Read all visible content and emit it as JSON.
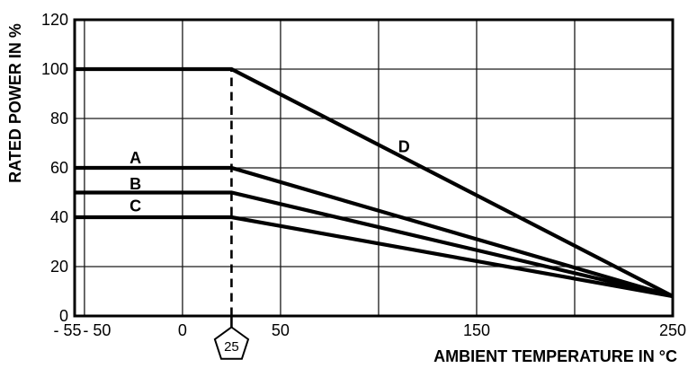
{
  "chart_data": {
    "type": "line",
    "title": "",
    "xlabel": "AMBIENT TEMPERATURE IN °C",
    "ylabel": "RATED POWER IN %",
    "xlim": [
      -55,
      250
    ],
    "ylim": [
      0,
      120
    ],
    "grid": true,
    "legend_position": "none",
    "x_gridlines": [
      -50,
      0,
      50,
      100,
      150,
      200
    ],
    "y_gridlines": [
      20,
      40,
      60,
      80,
      100
    ],
    "x_ticks": [
      {
        "value": -55,
        "label": "- 55",
        "dx": -8
      },
      {
        "value": -50,
        "label": "- 50",
        "dx": 14
      },
      {
        "value": 0,
        "label": "0",
        "dx": 0
      },
      {
        "value": 50,
        "label": "50",
        "dx": 0
      },
      {
        "value": 150,
        "label": "150",
        "dx": 0
      },
      {
        "value": 250,
        "label": "250",
        "dx": 0
      }
    ],
    "y_ticks": [
      {
        "value": 0,
        "label": "0"
      },
      {
        "value": 20,
        "label": "20"
      },
      {
        "value": 40,
        "label": "40"
      },
      {
        "value": 60,
        "label": "60"
      },
      {
        "value": 80,
        "label": "80"
      },
      {
        "value": 100,
        "label": "100"
      },
      {
        "value": 120,
        "label": "120"
      }
    ],
    "reference_line": {
      "x": 25,
      "y_from": 0,
      "y_to": 100,
      "style": "dashed"
    },
    "x_marker": {
      "value": 25,
      "label": "25",
      "shape": "pentagon"
    },
    "series": [
      {
        "name": "A",
        "points": [
          [
            -55,
            60
          ],
          [
            25,
            60
          ],
          [
            250,
            8
          ]
        ],
        "label_at": [
          -24,
          64
        ]
      },
      {
        "name": "B",
        "points": [
          [
            -55,
            50
          ],
          [
            25,
            50
          ],
          [
            250,
            8
          ]
        ],
        "label_at": [
          -24,
          53.5
        ]
      },
      {
        "name": "C",
        "points": [
          [
            -55,
            40
          ],
          [
            25,
            40
          ],
          [
            250,
            8
          ]
        ],
        "label_at": [
          -24,
          44.5
        ]
      },
      {
        "name": "D",
        "points": [
          [
            -55,
            100
          ],
          [
            25,
            100
          ],
          [
            250,
            8
          ]
        ],
        "label_at": [
          113,
          68.5
        ]
      }
    ],
    "colors": {
      "line": "#000000",
      "grid": "#1a1a1a",
      "background": "#ffffff"
    }
  }
}
